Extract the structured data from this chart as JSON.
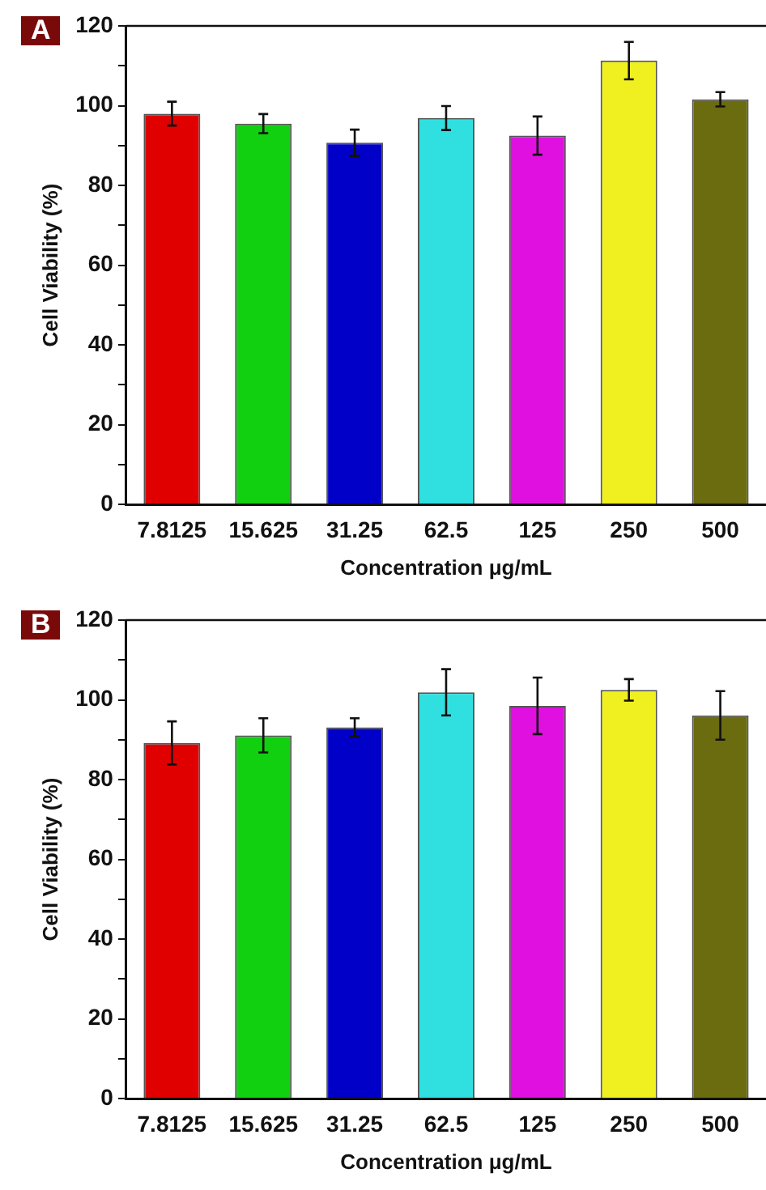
{
  "chart_data": [
    {
      "type": "bar",
      "annotations": [
        "A"
      ],
      "xlabel": "Concentration μg/mL",
      "ylabel": "Cell Viability (%)",
      "categories": [
        "7.8125",
        "15.625",
        "31.25",
        "62.5",
        "125",
        "250",
        "500"
      ],
      "values": [
        98.0,
        95.5,
        90.7,
        96.9,
        92.5,
        111.3,
        101.6
      ],
      "errors": [
        3.0,
        2.4,
        3.3,
        3.0,
        4.8,
        4.7,
        1.8
      ],
      "colors": [
        "#e00000",
        "#10d010",
        "#0000c8",
        "#30e0e0",
        "#e010e0",
        "#f0f020",
        "#6b6b10"
      ],
      "ylim": [
        0,
        120
      ],
      "yticks": [
        0,
        {
          "value": 10,
          "label": null
        },
        20,
        {
          "value": 30,
          "label": null
        },
        40,
        {
          "value": 50,
          "label": null
        },
        60,
        {
          "value": 70,
          "label": null
        },
        80,
        {
          "value": 90,
          "label": null
        },
        100,
        {
          "value": 110,
          "label": null
        },
        120
      ],
      "grid": false,
      "legend": false
    },
    {
      "type": "bar",
      "annotations": [
        "B"
      ],
      "xlabel": "Concentration μg/mL",
      "ylabel": "Cell Viability (%)",
      "categories": [
        "7.8125",
        "15.625",
        "31.25",
        "62.5",
        "125",
        "250",
        "500"
      ],
      "values": [
        89.2,
        91.1,
        93.1,
        101.9,
        98.5,
        102.5,
        96.1
      ],
      "errors": [
        5.4,
        4.3,
        2.3,
        5.8,
        7.1,
        2.7,
        6.1
      ],
      "colors": [
        "#e00000",
        "#10d010",
        "#0000c8",
        "#30e0e0",
        "#e010e0",
        "#f0f020",
        "#6b6b10"
      ],
      "ylim": [
        0,
        120
      ],
      "yticks": [
        0,
        {
          "value": 10,
          "label": null
        },
        20,
        {
          "value": 30,
          "label": null
        },
        40,
        {
          "value": 50,
          "label": null
        },
        60,
        {
          "value": 70,
          "label": null
        },
        80,
        {
          "value": 90,
          "label": null
        },
        100,
        {
          "value": 110,
          "label": null
        },
        120
      ],
      "grid": false,
      "legend": false
    }
  ]
}
